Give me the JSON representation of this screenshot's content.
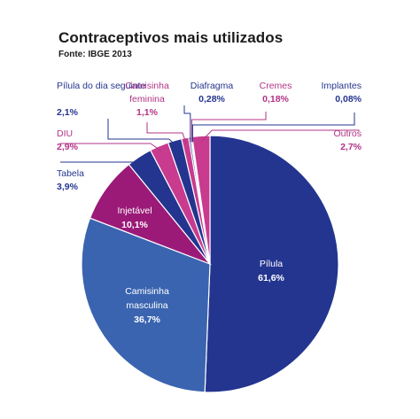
{
  "chart_data": {
    "type": "pie",
    "title": "Contraceptivos mais utilizados",
    "subtitle": "Fonte: IBGE 2013",
    "unit": "%",
    "colors": {
      "navy": "#24358f",
      "blue": "#3a64b0",
      "magenta": "#9b1a78",
      "pink": "#c83b8f",
      "label_blue": "#24358f",
      "label_pink": "#b23486"
    },
    "slices": [
      {
        "label": "Pílula",
        "value": 61.6,
        "display": "61,6%",
        "color": "#24358f"
      },
      {
        "label": "Camisinha masculina",
        "value": 36.7,
        "display": "36,7%",
        "color": "#3a64b0"
      },
      {
        "label": "Injetável",
        "value": 10.1,
        "display": "10,1%",
        "color": "#9b1a78"
      },
      {
        "label": "Tabela",
        "value": 3.9,
        "display": "3,9%",
        "color": "#24358f"
      },
      {
        "label": "DIU",
        "value": 2.9,
        "display": "2,9%",
        "color": "#c83b8f"
      },
      {
        "label": "Pílula do dia seguinte",
        "value": 2.1,
        "display": "2,1%",
        "color": "#24358f"
      },
      {
        "label": "Camisinha feminina",
        "value": 1.1,
        "display": "1,1%",
        "color": "#c83b8f"
      },
      {
        "label": "Diafragma",
        "value": 0.28,
        "display": "0,28%",
        "color": "#24358f"
      },
      {
        "label": "Cremes",
        "value": 0.18,
        "display": "0,18%",
        "color": "#c83b8f"
      },
      {
        "label": "Implantes",
        "value": 0.08,
        "display": "0,08%",
        "color": "#24358f"
      },
      {
        "label": "Outros",
        "value": 2.7,
        "display": "2,7%",
        "color": "#c83b8f"
      }
    ]
  }
}
